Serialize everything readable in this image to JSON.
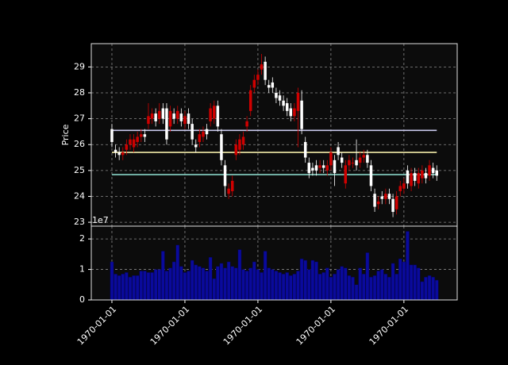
{
  "chart_data": {
    "type": "candlestick",
    "ylabel": "Price",
    "x": [
      0,
      1,
      2,
      3,
      4,
      5,
      6,
      7,
      8,
      9,
      10,
      11,
      12,
      13,
      14,
      15,
      16,
      17,
      18,
      19,
      20,
      21,
      22,
      23,
      24,
      25,
      26,
      27,
      28,
      29,
      30,
      31,
      32,
      33,
      34,
      35,
      36,
      37,
      38,
      39,
      40,
      41,
      42,
      43,
      44,
      45,
      46,
      47,
      48,
      49,
      50,
      51,
      52,
      53,
      54,
      55,
      56,
      57,
      58,
      59,
      60,
      61,
      62,
      63,
      64,
      65,
      66,
      67,
      68,
      69,
      70,
      71,
      72,
      73,
      74,
      75,
      76,
      77,
      78,
      79,
      80,
      81,
      82,
      83,
      84,
      85,
      86,
      87,
      88,
      89
    ],
    "open": [
      26.6,
      25.8,
      25.7,
      25.6,
      25.8,
      26.0,
      25.9,
      26.1,
      26.3,
      26.4,
      26.8,
      27.0,
      27.2,
      27.0,
      27.4,
      27.4,
      26.7,
      27.2,
      27.0,
      27.2,
      26.8,
      27.2,
      26.8,
      26.0,
      26.1,
      26.3,
      26.6,
      26.9,
      27.0,
      27.5,
      26.4,
      25.2,
      24.1,
      24.2,
      25.6,
      25.8,
      26.0,
      26.7,
      27.3,
      28.2,
      28.5,
      28.9,
      29.2,
      28.3,
      28.4,
      28.0,
      27.9,
      27.7,
      27.6,
      27.4,
      27.1,
      27.3,
      27.7,
      26.1,
      25.3,
      25.1,
      25.2,
      25.1,
      25.2,
      25.0,
      25.2,
      25.4,
      25.9,
      25.5,
      24.5,
      25.2,
      25.3,
      25.4,
      25.3,
      25.5,
      25.6,
      25.2,
      24.1,
      23.7,
      24.0,
      23.9,
      24.1,
      23.9,
      23.5,
      24.2,
      24.3,
      25.0,
      24.4,
      24.9,
      24.5,
      24.7,
      24.9,
      24.8,
      25.1,
      25.0
    ],
    "high": [
      26.8,
      26.0,
      25.9,
      25.9,
      26.2,
      26.4,
      26.4,
      26.5,
      26.6,
      26.6,
      27.6,
      27.4,
      27.4,
      27.6,
      27.6,
      27.6,
      27.5,
      27.4,
      27.5,
      27.4,
      27.3,
      27.4,
      27.0,
      26.2,
      26.6,
      26.7,
      26.8,
      27.6,
      27.7,
      27.7,
      26.6,
      25.4,
      24.5,
      24.8,
      26.2,
      26.4,
      26.5,
      27.1,
      28.3,
      28.7,
      28.9,
      29.5,
      29.4,
      28.5,
      28.6,
      28.2,
      28.1,
      27.9,
      27.8,
      27.6,
      27.6,
      28.2,
      28.1,
      26.3,
      25.5,
      25.3,
      25.4,
      25.4,
      25.4,
      25.4,
      25.9,
      25.6,
      26.1,
      25.7,
      25.4,
      25.6,
      25.5,
      26.2,
      25.7,
      25.8,
      25.8,
      25.4,
      24.3,
      24.0,
      24.2,
      24.3,
      24.3,
      24.1,
      24.2,
      24.6,
      24.7,
      25.2,
      25.1,
      25.1,
      25.1,
      25.2,
      25.1,
      25.4,
      25.3,
      25.2
    ],
    "low": [
      25.9,
      25.5,
      25.4,
      25.4,
      25.6,
      25.8,
      25.7,
      25.9,
      26.1,
      26.1,
      26.6,
      26.8,
      26.7,
      26.8,
      26.8,
      26.0,
      26.5,
      26.8,
      26.8,
      26.7,
      26.6,
      26.6,
      26.0,
      25.7,
      25.9,
      26.1,
      26.2,
      26.7,
      26.8,
      26.5,
      25.2,
      24.0,
      23.9,
      24.0,
      25.4,
      25.6,
      25.8,
      26.5,
      27.1,
      28.0,
      28.3,
      28.7,
      28.3,
      28.0,
      28.0,
      27.6,
      27.5,
      27.3,
      27.1,
      26.9,
      26.9,
      25.9,
      26.4,
      25.3,
      24.7,
      24.8,
      24.8,
      24.9,
      24.9,
      24.8,
      25.0,
      24.4,
      25.4,
      25.1,
      24.3,
      25.0,
      25.1,
      25.0,
      25.1,
      25.3,
      25.1,
      24.2,
      23.4,
      23.5,
      23.7,
      23.7,
      23.7,
      23.2,
      23.3,
      24.0,
      24.1,
      24.3,
      24.2,
      24.4,
      24.3,
      24.5,
      24.5,
      24.6,
      24.7,
      24.6
    ],
    "close": [
      26.1,
      25.7,
      25.6,
      25.7,
      26.0,
      26.2,
      26.2,
      26.3,
      26.4,
      26.3,
      27.1,
      27.2,
      26.9,
      27.3,
      27.0,
      26.2,
      27.3,
      27.0,
      27.3,
      26.9,
      27.1,
      26.8,
      26.2,
      25.9,
      26.4,
      26.5,
      26.4,
      27.4,
      27.5,
      26.7,
      25.4,
      24.4,
      24.3,
      24.6,
      26.0,
      26.2,
      26.3,
      26.9,
      28.1,
      28.5,
      28.7,
      29.1,
      28.5,
      28.2,
      28.2,
      27.8,
      27.7,
      27.5,
      27.3,
      27.1,
      27.4,
      28.0,
      26.6,
      25.5,
      24.9,
      25.0,
      25.0,
      25.2,
      25.1,
      25.2,
      25.7,
      24.9,
      25.6,
      25.3,
      25.2,
      25.4,
      25.3,
      25.2,
      25.5,
      25.6,
      25.3,
      24.4,
      23.6,
      23.8,
      23.9,
      24.1,
      23.9,
      23.4,
      24.0,
      24.4,
      24.5,
      24.5,
      24.9,
      24.6,
      24.9,
      25.0,
      24.7,
      25.2,
      24.9,
      24.8
    ],
    "volume": [
      12500000,
      8500000,
      8000000,
      8500000,
      9000000,
      7500000,
      8000000,
      8000000,
      9500000,
      9500000,
      9000000,
      9000000,
      10000000,
      10000000,
      16000000,
      9500000,
      10500000,
      12500000,
      18000000,
      11000000,
      9000000,
      9500000,
      13000000,
      11500000,
      11000000,
      10500000,
      9500000,
      14000000,
      7000000,
      11000000,
      12000000,
      10500000,
      12500000,
      11000000,
      10500000,
      16500000,
      10000000,
      9500000,
      10500000,
      12500000,
      10000000,
      9000000,
      16000000,
      10500000,
      10000000,
      9500000,
      9000000,
      8500000,
      9000000,
      8000000,
      8500000,
      9500000,
      13500000,
      13000000,
      10000000,
      13000000,
      12500000,
      8500000,
      9000000,
      10500000,
      7500000,
      8500000,
      10000000,
      11000000,
      10500000,
      8000000,
      7500000,
      5000000,
      10500000,
      8500000,
      15500000,
      7500000,
      8000000,
      9500000,
      10000000,
      8500000,
      7500000,
      12000000,
      8500000,
      13500000,
      12500000,
      22500000,
      11500000,
      11500000,
      10500000,
      6000000,
      7500000,
      8000000,
      7500000,
      6500000
    ],
    "up_color": "#d00000",
    "down_color": "#ffffff",
    "volume_color": "#0a0a9c",
    "hlines": [
      {
        "value": 26.55,
        "color": "#c8c8ec"
      },
      {
        "value": 25.7,
        "color": "#f2eaa8"
      },
      {
        "value": 24.84,
        "color": "#88d4c6"
      }
    ],
    "xlim": [
      -5.65,
      94.6
    ],
    "xticks": [
      {
        "value": 0,
        "label": "1970-01-01"
      },
      {
        "value": 20,
        "label": "1970-01-01"
      },
      {
        "value": 40,
        "label": "1970-01-01"
      },
      {
        "value": 60,
        "label": "1970-01-01"
      },
      {
        "value": 80,
        "label": "1970-01-01"
      }
    ],
    "ylim": [
      22.85,
      29.9
    ],
    "yticks": [
      23,
      24,
      25,
      26,
      27,
      28,
      29
    ],
    "vlim": [
      0,
      24200000
    ],
    "vticks": [
      0,
      {
        "value": 10000000,
        "label": "1"
      },
      {
        "value": 20000000,
        "label": "2"
      }
    ],
    "volume_offset_label": "1e7",
    "grid": true
  }
}
